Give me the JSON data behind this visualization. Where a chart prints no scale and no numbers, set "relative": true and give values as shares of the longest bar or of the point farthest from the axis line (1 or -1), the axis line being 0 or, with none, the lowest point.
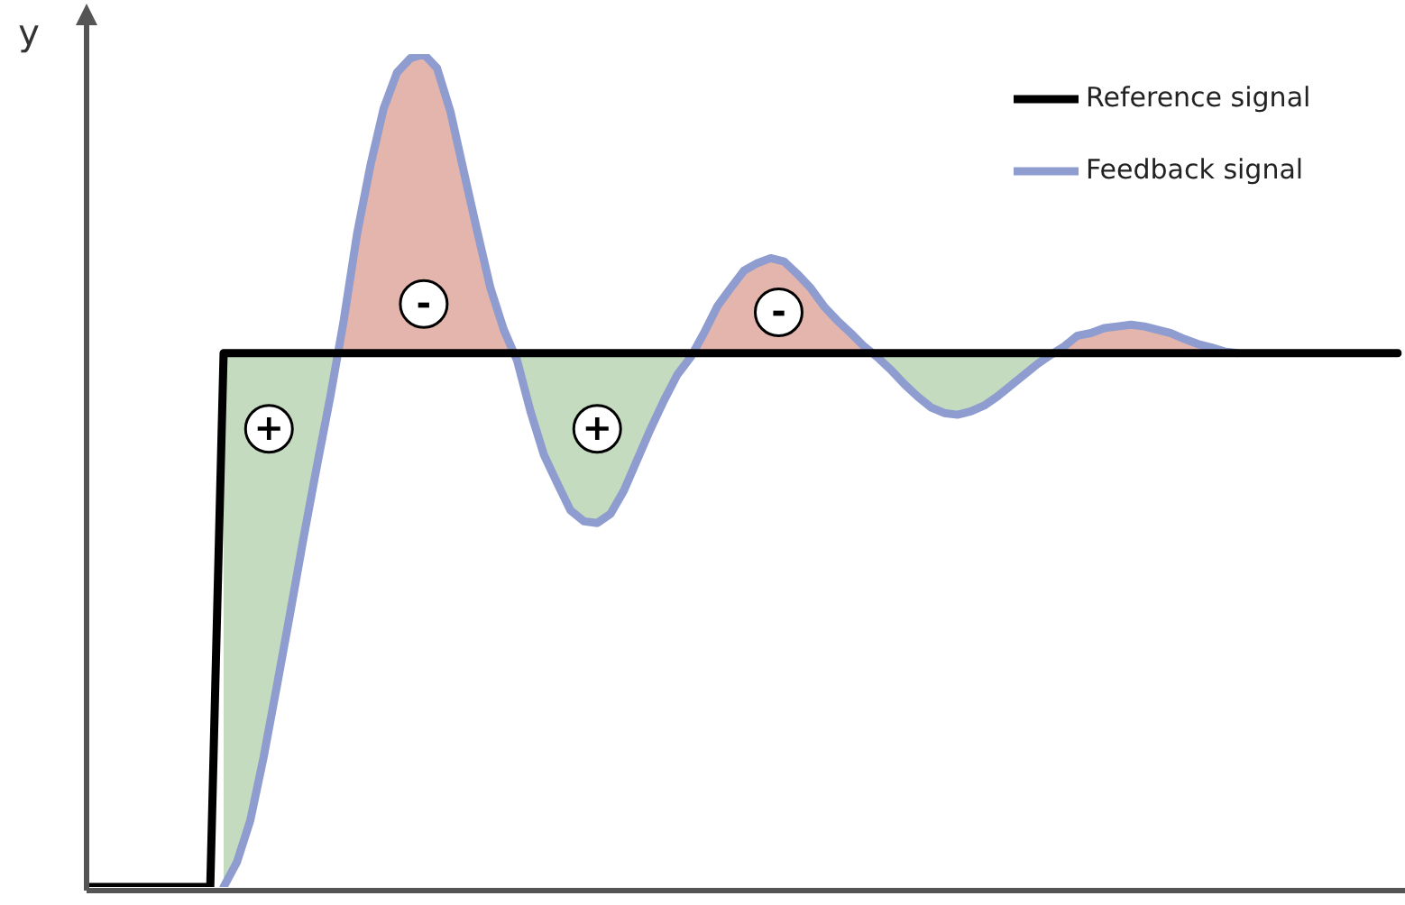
{
  "chart_data": {
    "type": "line",
    "relative": true,
    "ylabel": "y",
    "legend": "top right",
    "categories": [
      null,
      null,
      null,
      null,
      null,
      null,
      null,
      null,
      null,
      null,
      null,
      null,
      null,
      null,
      null,
      null,
      null,
      null,
      null,
      null,
      null,
      null,
      null,
      null,
      null,
      null,
      null,
      null,
      null,
      null,
      null,
      null,
      null,
      null,
      null,
      null,
      null,
      null,
      null,
      null,
      null,
      null,
      null,
      null,
      null,
      null,
      null,
      null,
      null,
      null,
      null,
      null,
      null,
      null,
      null,
      null,
      null,
      null,
      null,
      null,
      null,
      null,
      null,
      null,
      null,
      null,
      null,
      null,
      null,
      null,
      null,
      null,
      null,
      null,
      null,
      null,
      null,
      null,
      null,
      null,
      null,
      null,
      null,
      null,
      null,
      null,
      null,
      null,
      null,
      null,
      null,
      null,
      null,
      null,
      null,
      null,
      null,
      null,
      null
    ],
    "series": [
      {
        "name": "Reference signal",
        "color": "#000000",
        "values": [
          0,
          0,
          0,
          0,
          0,
          0,
          0,
          0,
          0,
          0,
          0.641,
          0.641,
          0.641,
          0.641,
          0.641,
          0.641,
          0.641,
          0.641,
          0.641,
          0.641,
          0.641,
          0.641,
          0.641,
          0.641,
          0.641,
          0.641,
          0.641,
          0.641,
          0.641,
          0.641,
          0.641,
          0.641,
          0.641,
          0.641,
          0.641,
          0.641,
          0.641,
          0.641,
          0.641,
          0.641,
          0.641,
          0.641,
          0.641,
          0.641,
          0.641,
          0.641,
          0.641,
          0.641,
          0.641,
          0.641,
          0.641,
          0.641,
          0.641,
          0.641,
          0.641,
          0.641,
          0.641,
          0.641,
          0.641,
          0.641,
          0.641,
          0.641,
          0.641,
          0.641,
          0.641,
          0.641,
          0.641,
          0.641,
          0.641,
          0.641,
          0.641,
          0.641,
          0.641,
          0.641,
          0.641,
          0.641,
          0.641,
          0.641,
          0.641,
          0.641,
          0.641,
          0.641,
          0.641,
          0.641,
          0.641,
          0.641,
          0.641,
          0.641,
          0.641,
          0.641,
          0.641,
          0.641,
          0.641,
          0.641,
          0.641,
          0.641,
          0.641,
          0.641,
          0.641
        ]
      },
      {
        "name": "Feedback signal",
        "color": "#8e9ccf",
        "values": [
          null,
          null,
          null,
          null,
          null,
          null,
          null,
          null,
          null,
          null,
          0,
          0.03,
          0.08,
          0.156,
          0.242,
          0.33,
          0.42,
          0.506,
          0.589,
          0.68,
          0.784,
          0.866,
          0.935,
          0.978,
          0.995,
          1,
          0.983,
          0.931,
          0.859,
          0.788,
          0.719,
          0.669,
          0.632,
          0.571,
          0.519,
          0.485,
          0.452,
          0.439,
          0.437,
          0.448,
          0.476,
          0.513,
          0.55,
          0.584,
          0.615,
          0.636,
          0.665,
          0.697,
          0.719,
          0.74,
          0.749,
          0.755,
          0.751,
          0.736,
          0.719,
          0.697,
          0.68,
          0.665,
          0.649,
          0.636,
          0.621,
          0.604,
          0.589,
          0.576,
          0.569,
          0.567,
          0.571,
          0.578,
          0.589,
          0.602,
          0.615,
          0.628,
          0.639,
          0.649,
          0.662,
          0.665,
          0.671,
          0.673,
          0.675,
          0.673,
          0.669,
          0.665,
          0.658,
          0.652,
          0.648,
          0.643,
          0.641,
          null,
          null,
          null,
          null,
          null,
          null,
          null,
          null,
          null,
          null,
          null,
          null
        ]
      }
    ],
    "annotations": [
      "+",
      "-",
      "+",
      "-"
    ]
  }
}
